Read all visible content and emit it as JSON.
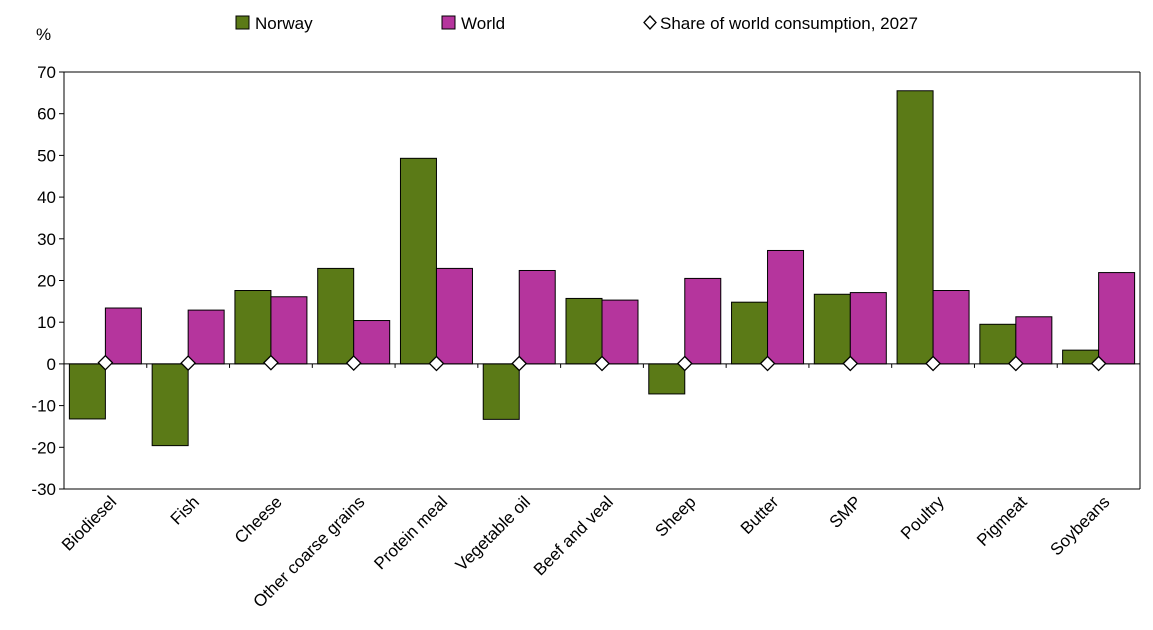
{
  "chart_data": {
    "type": "bar",
    "ylabel": "%",
    "ylim": [
      -30,
      70
    ],
    "yticks": [
      -30,
      -20,
      -10,
      0,
      10,
      20,
      30,
      40,
      50,
      60,
      70
    ],
    "grid": false,
    "legend_position": "top",
    "categories": [
      "Biodiesel",
      "Fish",
      "Cheese",
      "Other coarse grains",
      "Protein meal",
      "Vegetable oil",
      "Beef and veal",
      "Sheep",
      "Butter",
      "SMP",
      "Poultry",
      "Pigmeat",
      "Soybeans"
    ],
    "series": [
      {
        "name": "Norway",
        "type": "bar",
        "color": "#5b7a17",
        "values": [
          -13.2,
          -19.6,
          17.6,
          22.9,
          49.3,
          -13.3,
          15.7,
          -7.2,
          14.8,
          16.7,
          65.5,
          9.5,
          3.3
        ]
      },
      {
        "name": "World",
        "type": "bar",
        "color": "#b5359d",
        "values": [
          13.4,
          12.9,
          16.1,
          10.4,
          22.9,
          22.4,
          15.3,
          20.5,
          27.2,
          17.1,
          17.6,
          11.3,
          21.9
        ]
      },
      {
        "name": "Share of world consumption, 2027",
        "type": "marker",
        "marker": "diamond",
        "values": [
          0.3,
          0.2,
          0.3,
          0.2,
          0.1,
          0.1,
          0.1,
          0.1,
          0.1,
          0.1,
          0.1,
          0.1,
          0.1
        ]
      }
    ]
  }
}
